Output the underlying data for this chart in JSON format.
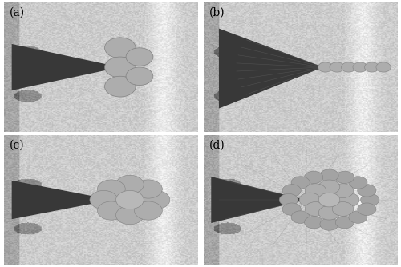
{
  "figure_width": 5.0,
  "figure_height": 3.34,
  "dpi": 100,
  "background_color": "#ffffff",
  "labels": [
    "(a)",
    "(b)",
    "(c)",
    "(d)"
  ],
  "label_fontsize": 10,
  "label_color": "#000000",
  "border_color": "#000000",
  "border_linewidth": 1.0,
  "bg_gray": 0.8,
  "cone_dark": 0.22,
  "cylinder_gray": 0.68,
  "wspace": 0.03,
  "hspace": 0.03
}
